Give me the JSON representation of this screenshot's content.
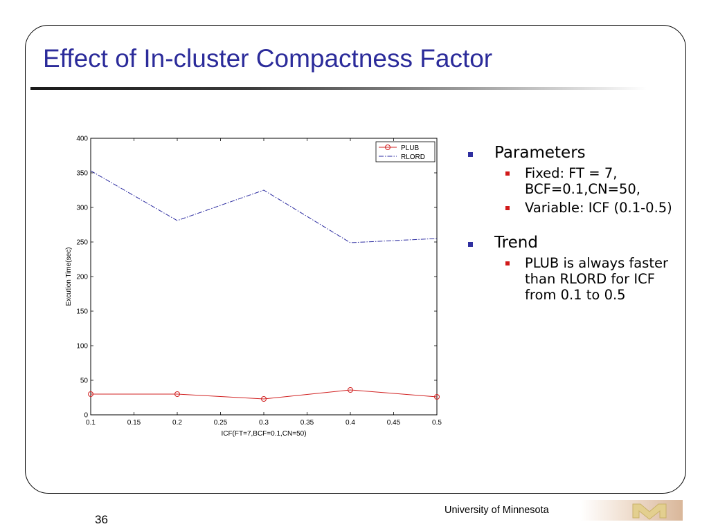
{
  "slide": {
    "title": "Effect of In-cluster Compactness Factor",
    "footer": "University of Minnesota",
    "page_number": "36"
  },
  "bullets": [
    {
      "text": "Parameters",
      "sub": [
        "Fixed: FT = 7, BCF=0.1,CN=50,",
        "Variable: ICF (0.1-0.5)"
      ]
    },
    {
      "text": "Trend",
      "sub": [
        "PLUB is always faster than RLORD for ICF from 0.1 to 0.5"
      ]
    }
  ],
  "colors": {
    "title": "#2b2b9a",
    "bullet_l1": "#2f2fa0",
    "bullet_l2": "#d11a1a",
    "plub": "#d12020",
    "rlord": "#2a2aa0"
  },
  "chart_data": {
    "type": "line",
    "xlabel": "ICF(FT=7,BCF=0.1,CN=50)",
    "ylabel": "Excution Time(sec)",
    "xlim": [
      0.1,
      0.5
    ],
    "ylim": [
      0,
      400
    ],
    "xticks": [
      "0.1",
      "0.15",
      "0.2",
      "0.25",
      "0.3",
      "0.35",
      "0.4",
      "0.45",
      "0.5"
    ],
    "yticks": [
      "0",
      "50",
      "100",
      "150",
      "200",
      "250",
      "300",
      "350",
      "400"
    ],
    "x": [
      0.1,
      0.2,
      0.3,
      0.4,
      0.5
    ],
    "series": [
      {
        "name": "PLUB",
        "values": [
          30,
          30,
          23,
          36,
          26
        ],
        "style": "solid-circle"
      },
      {
        "name": "RLORD",
        "values": [
          353,
          281,
          325,
          249,
          255
        ],
        "style": "dashdot"
      }
    ],
    "legend": "top-right",
    "grid": false
  }
}
